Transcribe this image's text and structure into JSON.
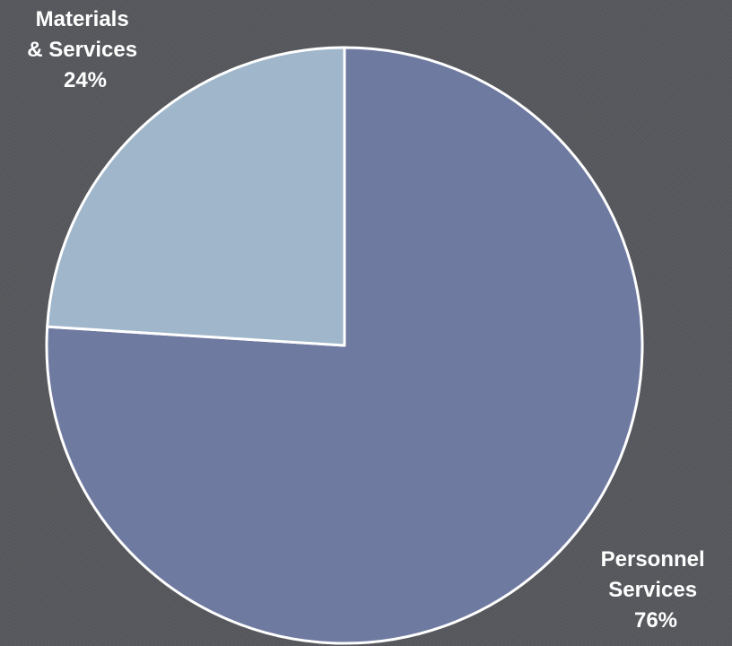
{
  "background_color": "#56585d",
  "chart_data": {
    "type": "pie",
    "title": "",
    "slices": [
      {
        "label_lines": [
          "Personnel",
          "Services"
        ],
        "percent_text": "76%",
        "value": 76,
        "color": "#6f7aa1"
      },
      {
        "label_lines": [
          "Materials",
          "& Services"
        ],
        "percent_text": "24%",
        "value": 24,
        "color": "#9fb6cb"
      }
    ],
    "start_angle_deg": 0,
    "direction": "clockwise",
    "legend": "none"
  }
}
